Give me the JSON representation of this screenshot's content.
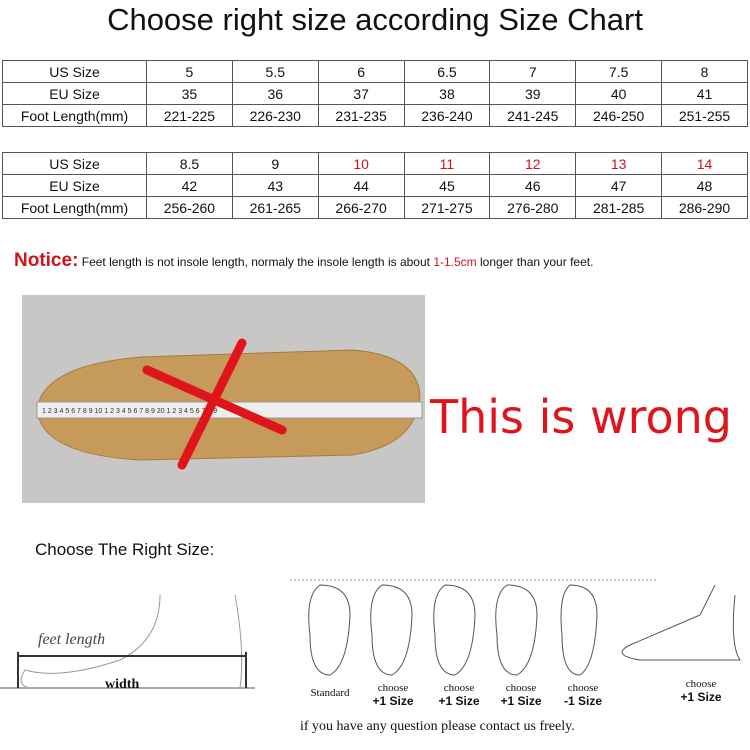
{
  "title": "Choose right size according Size Chart",
  "tables": [
    {
      "rows": [
        {
          "label": "US Size",
          "values": [
            "5",
            "5.5",
            "6",
            "6.5",
            "7",
            "7.5",
            "8"
          ]
        },
        {
          "label": "EU Size",
          "values": [
            "35",
            "36",
            "37",
            "38",
            "39",
            "40",
            "41"
          ]
        },
        {
          "label": "Foot Length(mm)",
          "values": [
            "221-225",
            "226-230",
            "231-235",
            "236-240",
            "241-245",
            "246-250",
            "251-255"
          ]
        }
      ]
    },
    {
      "rows": [
        {
          "label": "US Size",
          "values": [
            "8.5",
            "9",
            "10",
            "11",
            "12",
            "13",
            "14"
          ]
        },
        {
          "label": "EU Size",
          "values": [
            "42",
            "43",
            "44",
            "45",
            "46",
            "47",
            "48"
          ]
        },
        {
          "label": "Foot Length(mm)",
          "values": [
            "256-260",
            "261-265",
            "266-270",
            "271-275",
            "276-280",
            "281-285",
            "286-290"
          ]
        }
      ]
    }
  ],
  "highlight_color": "#d0121b",
  "notice": {
    "label": "Notice:",
    "text_before": "Feet length is not insole length, normaly the insole length is about ",
    "highlight": "1-1.5cm",
    "text_after": " longer than your feet."
  },
  "photo": {
    "caption": "This is wrong"
  },
  "guide": {
    "title": "Choose The Right Size:",
    "feet_length": "feet length",
    "width": "width",
    "labels": [
      {
        "top": "Standard",
        "bottom": ""
      },
      {
        "top": "choose",
        "bottom": "+1 Size"
      },
      {
        "top": "choose",
        "bottom": "+1 Size"
      },
      {
        "top": "choose",
        "bottom": "+1 Size"
      },
      {
        "top": "choose",
        "bottom": "-1 Size"
      },
      {
        "top": "choose",
        "bottom": "+1 Size"
      }
    ],
    "contact": "if you have any question please contact us freely."
  }
}
